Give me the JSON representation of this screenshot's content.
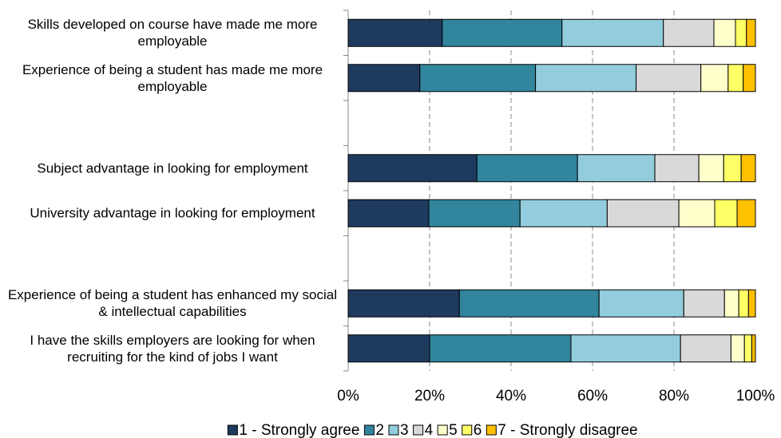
{
  "chart_data": {
    "type": "stacked_barh",
    "categories": [
      "Skills  developed on course have made me more employable",
      "Experience of being a student has made me more employable",
      null,
      "Subject  advantage in looking for employment",
      "University  advantage in looking for employment",
      null,
      "Experience of being a student has enhanced my social & intellectual capabilities",
      "I have the skills employers are looking for when recruiting for the kind of jobs  I want"
    ],
    "series": [
      {
        "name": "1 - Strongly agree",
        "color": "#1f3a5f",
        "values": [
          23.1,
          17.6,
          null,
          31.6,
          19.8,
          null,
          27.3,
          20.0
        ]
      },
      {
        "name": "2",
        "color": "#31859c",
        "values": [
          29.4,
          28.4,
          null,
          24.7,
          22.4,
          null,
          34.3,
          34.7
        ]
      },
      {
        "name": "3",
        "color": "#93cddd",
        "values": [
          24.9,
          24.7,
          null,
          19.0,
          21.4,
          null,
          20.8,
          26.9
        ]
      },
      {
        "name": "4",
        "color": "#d9d9d9",
        "values": [
          12.4,
          15.9,
          null,
          10.8,
          17.6,
          null,
          10.0,
          12.4
        ]
      },
      {
        "name": "5",
        "color": "#ffffcc",
        "values": [
          5.3,
          6.7,
          null,
          6.1,
          8.8,
          null,
          3.5,
          3.3
        ]
      },
      {
        "name": "6",
        "color": "#ffff66",
        "values": [
          2.7,
          3.7,
          null,
          4.3,
          5.5,
          null,
          2.4,
          1.8
        ]
      },
      {
        "name": "7 - Strongly disagree",
        "color": "#ffc000",
        "values": [
          2.2,
          3.0,
          null,
          3.5,
          4.5,
          null,
          1.7,
          0.9
        ]
      }
    ],
    "xlim": [
      0,
      100
    ],
    "xticks": [
      {
        "value": 0,
        "label": "0%"
      },
      {
        "value": 20,
        "label": "20%"
      },
      {
        "value": 40,
        "label": "40%"
      },
      {
        "value": 60,
        "label": "60%"
      },
      {
        "value": 80,
        "label": "80%"
      },
      {
        "value": 100,
        "label": "100%"
      }
    ],
    "grid": true,
    "legend": "bottom"
  }
}
